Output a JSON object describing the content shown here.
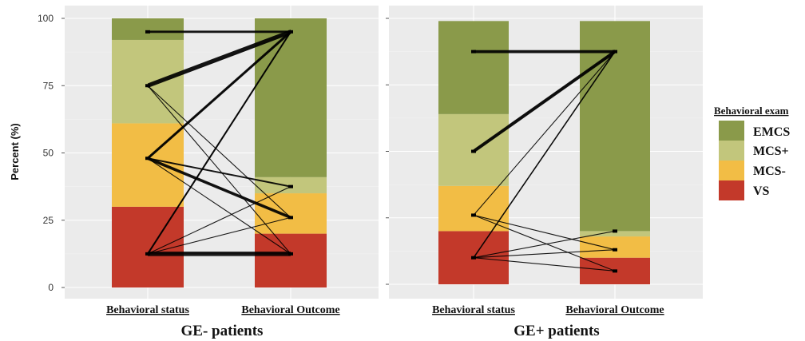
{
  "y_axis_title": "Percent (%)",
  "legend": {
    "title": "Behavioral exam",
    "items": [
      {
        "label": "EMCS",
        "color": "#8a9a4a"
      },
      {
        "label": "MCS+",
        "color": "#c2c67c"
      },
      {
        "label": "MCS-",
        "color": "#f2bd45"
      },
      {
        "label": "VS",
        "color": "#c3392a"
      }
    ]
  },
  "chart_data": [
    {
      "type": "bar",
      "title": "GE- patients",
      "ylabel": "Percent (%)",
      "ylim": [
        0,
        100
      ],
      "y_ticks": [
        "0",
        "25",
        "50",
        "75",
        "100"
      ],
      "categories": [
        "Behavioral status",
        "Behavioral Outcome"
      ],
      "stacked": true,
      "series": [
        {
          "name": "VS",
          "values": [
            30,
            20
          ]
        },
        {
          "name": "MCS-",
          "values": [
            31,
            15
          ]
        },
        {
          "name": "MCS+",
          "values": [
            31,
            6
          ]
        },
        {
          "name": "EMCS",
          "values": [
            8,
            59
          ]
        }
      ],
      "status_points": [
        95,
        75,
        48,
        12.5
      ],
      "outcome_points": [
        95,
        37.5,
        26,
        12.5
      ],
      "flows": [
        {
          "from": 95,
          "to": 95,
          "weight": 3
        },
        {
          "from": 75,
          "to": 95,
          "weight": 6
        },
        {
          "from": 75,
          "to": 26,
          "weight": 1
        },
        {
          "from": 75,
          "to": 12.5,
          "weight": 1
        },
        {
          "from": 48,
          "to": 95,
          "weight": 4
        },
        {
          "from": 48,
          "to": 37.5,
          "weight": 2
        },
        {
          "from": 48,
          "to": 26,
          "weight": 4
        },
        {
          "from": 48,
          "to": 12.5,
          "weight": 1
        },
        {
          "from": 12.5,
          "to": 95,
          "weight": 3
        },
        {
          "from": 12.5,
          "to": 37.5,
          "weight": 1
        },
        {
          "from": 12.5,
          "to": 26,
          "weight": 1
        },
        {
          "from": 12.5,
          "to": 12.5,
          "weight": 6
        }
      ]
    },
    {
      "type": "bar",
      "title": "GE+ patients",
      "ylim": [
        0,
        100
      ],
      "categories": [
        "Behavioral status",
        "Behavioral Outcome"
      ],
      "stacked": true,
      "series": [
        {
          "name": "VS",
          "values": [
            20,
            10
          ]
        },
        {
          "name": "MCS-",
          "values": [
            17,
            8
          ]
        },
        {
          "name": "MCS+",
          "values": [
            27,
            2
          ]
        },
        {
          "name": "EMCS",
          "values": [
            35,
            79
          ]
        }
      ],
      "status_points": [
        87.5,
        50,
        26,
        10
      ],
      "outcome_points": [
        87.5,
        20,
        13,
        5
      ],
      "flows": [
        {
          "from": 87.5,
          "to": 87.5,
          "weight": 4
        },
        {
          "from": 50,
          "to": 87.5,
          "weight": 5
        },
        {
          "from": 26,
          "to": 87.5,
          "weight": 1
        },
        {
          "from": 26,
          "to": 13,
          "weight": 1
        },
        {
          "from": 26,
          "to": 5,
          "weight": 1
        },
        {
          "from": 10,
          "to": 87.5,
          "weight": 2
        },
        {
          "from": 10,
          "to": 20,
          "weight": 1
        },
        {
          "from": 10,
          "to": 13,
          "weight": 1
        },
        {
          "from": 10,
          "to": 5,
          "weight": 1
        }
      ]
    }
  ]
}
